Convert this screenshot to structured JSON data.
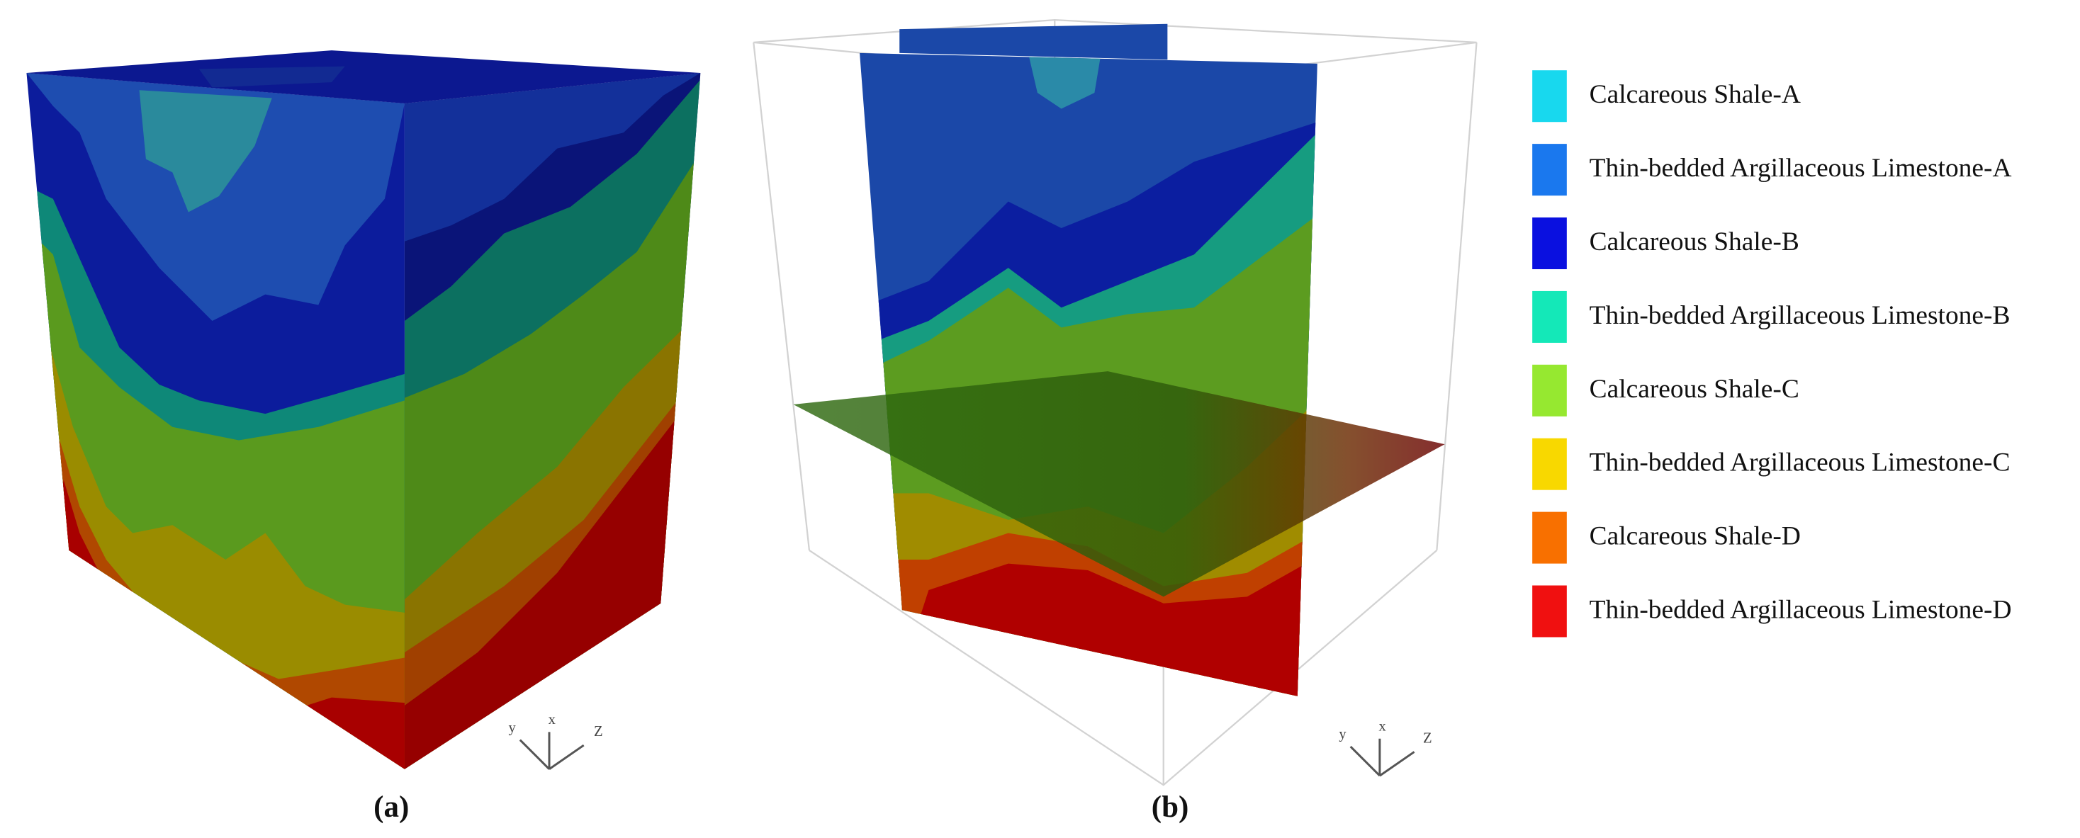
{
  "panels": [
    {
      "label": "(a)",
      "axes": [
        "y",
        "x",
        "Z"
      ]
    },
    {
      "label": "(b)",
      "axes": [
        "y",
        "x",
        "Z"
      ]
    }
  ],
  "legend": [
    {
      "label": "Calcareous Shale-A",
      "color": "#18d8ee"
    },
    {
      "label": "Thin-bedded Argillaceous Limestone-A",
      "color": "#1a78ee"
    },
    {
      "label": "Calcareous Shale-B",
      "color": "#0a10e0"
    },
    {
      "label": "Thin-bedded Argillaceous Limestone-B",
      "color": "#14e8b8"
    },
    {
      "label": "Calcareous Shale-C",
      "color": "#96e830"
    },
    {
      "label": "Thin-bedded Argillaceous Limestone-C",
      "color": "#f8d800"
    },
    {
      "label": "Calcareous Shale-D",
      "color": "#f87000"
    },
    {
      "label": "Thin-bedded Argillaceous Limestone-D",
      "color": "#f01010"
    }
  ]
}
